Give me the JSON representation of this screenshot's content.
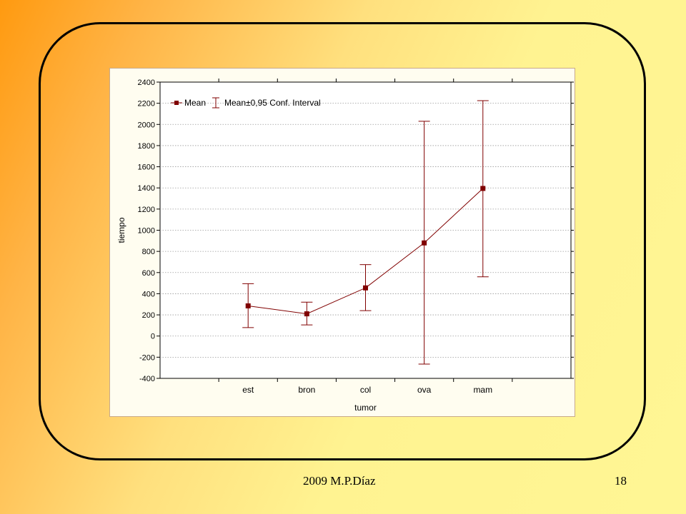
{
  "footer": {
    "left": "2009   M.P.Díaz",
    "page_number": "18"
  },
  "colors": {
    "series": "#800000",
    "grid": "#9a9a9a"
  },
  "chart_data": {
    "type": "line",
    "subtype": "error-bar",
    "title": "",
    "xlabel": "tumor",
    "ylabel": "tiempo",
    "categories": [
      "est",
      "bron",
      "col",
      "ova",
      "mam"
    ],
    "series": [
      {
        "name": "Mean",
        "values": [
          285,
          210,
          455,
          880,
          1395
        ],
        "ci_lower": [
          80,
          105,
          240,
          -265,
          560
        ],
        "ci_upper": [
          495,
          320,
          675,
          2030,
          2225
        ]
      }
    ],
    "error_bar_label": "Mean±0,95 Conf. Interval",
    "ylim": [
      -400,
      2400
    ],
    "yticks": [
      2400,
      2200,
      2000,
      1800,
      1600,
      1400,
      1200,
      1000,
      800,
      600,
      400,
      200,
      0,
      -200,
      -400
    ],
    "grid": true,
    "legend_position": "top-left"
  }
}
